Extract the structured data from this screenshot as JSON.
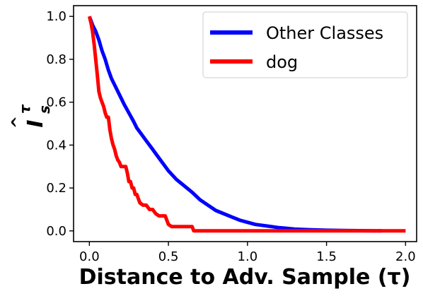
{
  "chart_data": {
    "type": "line",
    "xlabel": "Distance to Adv. Sample (τ)",
    "ylabel_main": "I",
    "ylabel_hat": "^",
    "ylabel_sup": "τ",
    "ylabel_sub": "s",
    "xlim": [
      -0.1,
      2.07
    ],
    "ylim": [
      -0.05,
      1.05
    ],
    "xticks": [
      0.0,
      0.5,
      1.0,
      1.5,
      2.0
    ],
    "xtick_labels": [
      "0.0",
      "0.5",
      "1.0",
      "1.5",
      "2.0"
    ],
    "yticks": [
      0.0,
      0.2,
      0.4,
      0.6,
      0.8,
      1.0
    ],
    "ytick_labels": [
      "0.0",
      "0.2",
      "0.4",
      "0.6",
      "0.8",
      "1.0"
    ],
    "legend_position": "top-right",
    "series": [
      {
        "name": "Other Classes",
        "color": "#0000ff",
        "x": [
          0.0,
          0.02,
          0.04,
          0.06,
          0.08,
          0.1,
          0.12,
          0.14,
          0.16,
          0.18,
          0.2,
          0.22,
          0.25,
          0.28,
          0.3,
          0.33,
          0.36,
          0.4,
          0.42,
          0.45,
          0.48,
          0.5,
          0.55,
          0.6,
          0.65,
          0.7,
          0.75,
          0.8,
          0.85,
          0.9,
          0.95,
          1.0,
          1.05,
          1.1,
          1.15,
          1.2,
          1.25,
          1.3,
          1.4,
          1.5,
          1.6,
          1.7,
          1.8,
          1.85
        ],
        "y": [
          1.0,
          0.96,
          0.93,
          0.89,
          0.84,
          0.8,
          0.75,
          0.71,
          0.68,
          0.65,
          0.62,
          0.59,
          0.55,
          0.51,
          0.48,
          0.45,
          0.42,
          0.38,
          0.36,
          0.33,
          0.3,
          0.28,
          0.24,
          0.21,
          0.18,
          0.145,
          0.12,
          0.095,
          0.08,
          0.065,
          0.05,
          0.04,
          0.03,
          0.025,
          0.02,
          0.015,
          0.012,
          0.008,
          0.005,
          0.003,
          0.002,
          0.001,
          0.0,
          0.0
        ]
      },
      {
        "name": "dog",
        "color": "#ff0000",
        "x": [
          0.0,
          0.01,
          0.02,
          0.03,
          0.04,
          0.05,
          0.06,
          0.07,
          0.08,
          0.09,
          0.1,
          0.11,
          0.12,
          0.13,
          0.14,
          0.15,
          0.16,
          0.17,
          0.18,
          0.19,
          0.2,
          0.21,
          0.22,
          0.23,
          0.24,
          0.25,
          0.26,
          0.27,
          0.28,
          0.29,
          0.3,
          0.31,
          0.32,
          0.34,
          0.36,
          0.38,
          0.4,
          0.42,
          0.44,
          0.46,
          0.48,
          0.5,
          0.52,
          0.55,
          0.58,
          0.6,
          0.65,
          0.66,
          0.67,
          0.7,
          0.8,
          1.0,
          1.2,
          1.5,
          1.8,
          2.0
        ],
        "y": [
          1.0,
          0.97,
          0.93,
          0.87,
          0.8,
          0.73,
          0.65,
          0.62,
          0.6,
          0.58,
          0.55,
          0.53,
          0.53,
          0.47,
          0.43,
          0.4,
          0.38,
          0.35,
          0.33,
          0.32,
          0.3,
          0.3,
          0.3,
          0.3,
          0.27,
          0.23,
          0.23,
          0.2,
          0.2,
          0.17,
          0.17,
          0.15,
          0.13,
          0.12,
          0.12,
          0.1,
          0.1,
          0.08,
          0.07,
          0.07,
          0.07,
          0.03,
          0.02,
          0.02,
          0.02,
          0.02,
          0.02,
          0.0,
          0.0,
          0.0,
          0.0,
          0.0,
          0.0,
          0.0,
          0.0,
          0.0
        ]
      }
    ]
  }
}
